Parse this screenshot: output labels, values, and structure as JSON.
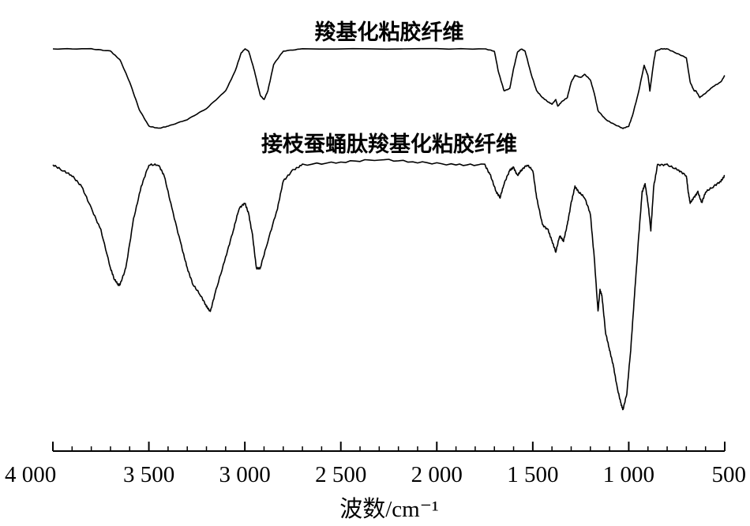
{
  "chart_data": {
    "type": "line",
    "title": "",
    "xlabel": "波数/cm⁻¹",
    "ylabel": "",
    "x_reversed": true,
    "xlim": [
      4000,
      500
    ],
    "x_ticks": [
      4000,
      3500,
      3000,
      2500,
      2000,
      1500,
      1000,
      500
    ],
    "x_tick_labels": [
      "4 000",
      "3 500",
      "3 000",
      "2 500",
      "2 000",
      "1 500",
      "1 000",
      "500"
    ],
    "y_axis_shown": false,
    "y_units": "transmittance, 100 = baseline (curves offset vertically)",
    "grid": false,
    "series": [
      {
        "name": "羧基化粘胶纤维",
        "points": [
          [
            4000,
            100
          ],
          [
            3800,
            100
          ],
          [
            3700,
            98
          ],
          [
            3650,
            90
          ],
          [
            3600,
            70
          ],
          [
            3550,
            45
          ],
          [
            3500,
            30
          ],
          [
            3450,
            28
          ],
          [
            3400,
            30
          ],
          [
            3300,
            36
          ],
          [
            3200,
            46
          ],
          [
            3100,
            62
          ],
          [
            3050,
            80
          ],
          [
            3020,
            96
          ],
          [
            3000,
            100
          ],
          [
            2980,
            98
          ],
          [
            2950,
            80
          ],
          [
            2920,
            58
          ],
          [
            2900,
            54
          ],
          [
            2880,
            62
          ],
          [
            2850,
            86
          ],
          [
            2800,
            98
          ],
          [
            2700,
            100
          ],
          [
            2000,
            100
          ],
          [
            1750,
            100
          ],
          [
            1700,
            98
          ],
          [
            1680,
            80
          ],
          [
            1650,
            62
          ],
          [
            1620,
            64
          ],
          [
            1600,
            82
          ],
          [
            1580,
            97
          ],
          [
            1560,
            100
          ],
          [
            1540,
            98
          ],
          [
            1510,
            78
          ],
          [
            1480,
            62
          ],
          [
            1450,
            56
          ],
          [
            1420,
            52
          ],
          [
            1400,
            50
          ],
          [
            1380,
            54
          ],
          [
            1370,
            48
          ],
          [
            1350,
            52
          ],
          [
            1320,
            56
          ],
          [
            1300,
            70
          ],
          [
            1280,
            76
          ],
          [
            1250,
            74
          ],
          [
            1230,
            77
          ],
          [
            1200,
            72
          ],
          [
            1180,
            60
          ],
          [
            1160,
            44
          ],
          [
            1120,
            36
          ],
          [
            1080,
            32
          ],
          [
            1030,
            28
          ],
          [
            1000,
            30
          ],
          [
            980,
            40
          ],
          [
            950,
            60
          ],
          [
            920,
            85
          ],
          [
            900,
            76
          ],
          [
            890,
            62
          ],
          [
            870,
            88
          ],
          [
            860,
            98
          ],
          [
            830,
            100
          ],
          [
            800,
            100
          ],
          [
            750,
            96
          ],
          [
            700,
            92
          ],
          [
            680,
            70
          ],
          [
            660,
            62
          ],
          [
            650,
            62
          ],
          [
            630,
            56
          ],
          [
            600,
            60
          ],
          [
            560,
            66
          ],
          [
            520,
            70
          ],
          [
            500,
            76
          ]
        ]
      },
      {
        "name": "接枝蚕蛹肽羧基化粘胶纤维",
        "points": [
          [
            4000,
            100
          ],
          [
            3950,
            98
          ],
          [
            3900,
            96
          ],
          [
            3850,
            92
          ],
          [
            3800,
            84
          ],
          [
            3750,
            76
          ],
          [
            3700,
            62
          ],
          [
            3680,
            58
          ],
          [
            3660,
            56
          ],
          [
            3650,
            56
          ],
          [
            3620,
            62
          ],
          [
            3580,
            80
          ],
          [
            3540,
            92
          ],
          [
            3500,
            100
          ],
          [
            3450,
            100
          ],
          [
            3420,
            96
          ],
          [
            3380,
            84
          ],
          [
            3330,
            70
          ],
          [
            3300,
            62
          ],
          [
            3270,
            56
          ],
          [
            3230,
            52
          ],
          [
            3200,
            48
          ],
          [
            3180,
            46
          ],
          [
            3150,
            54
          ],
          [
            3100,
            66
          ],
          [
            3060,
            76
          ],
          [
            3030,
            84
          ],
          [
            3000,
            86
          ],
          [
            2980,
            82
          ],
          [
            2960,
            74
          ],
          [
            2940,
            62
          ],
          [
            2920,
            62
          ],
          [
            2880,
            72
          ],
          [
            2830,
            84
          ],
          [
            2800,
            94
          ],
          [
            2750,
            98
          ],
          [
            2700,
            100
          ],
          [
            2500,
            101
          ],
          [
            2300,
            102
          ],
          [
            2100,
            101
          ],
          [
            1900,
            100
          ],
          [
            1750,
            100
          ],
          [
            1720,
            96
          ],
          [
            1690,
            90
          ],
          [
            1670,
            88
          ],
          [
            1650,
            93
          ],
          [
            1620,
            98
          ],
          [
            1600,
            99
          ],
          [
            1580,
            96
          ],
          [
            1560,
            98
          ],
          [
            1530,
            100
          ],
          [
            1500,
            98
          ],
          [
            1480,
            88
          ],
          [
            1450,
            78
          ],
          [
            1420,
            76
          ],
          [
            1400,
            72
          ],
          [
            1380,
            68
          ],
          [
            1360,
            74
          ],
          [
            1340,
            72
          ],
          [
            1320,
            78
          ],
          [
            1300,
            86
          ],
          [
            1280,
            92
          ],
          [
            1260,
            90
          ],
          [
            1230,
            88
          ],
          [
            1200,
            82
          ],
          [
            1180,
            66
          ],
          [
            1160,
            46
          ],
          [
            1150,
            54
          ],
          [
            1140,
            52
          ],
          [
            1120,
            38
          ],
          [
            1100,
            32
          ],
          [
            1080,
            26
          ],
          [
            1060,
            18
          ],
          [
            1040,
            12
          ],
          [
            1030,
            10
          ],
          [
            1010,
            16
          ],
          [
            990,
            32
          ],
          [
            970,
            52
          ],
          [
            950,
            72
          ],
          [
            930,
            90
          ],
          [
            915,
            93
          ],
          [
            900,
            86
          ],
          [
            885,
            76
          ],
          [
            870,
            92
          ],
          [
            850,
            100
          ],
          [
            800,
            100
          ],
          [
            740,
            98
          ],
          [
            700,
            96
          ],
          [
            690,
            90
          ],
          [
            680,
            86
          ],
          [
            660,
            88
          ],
          [
            640,
            90
          ],
          [
            620,
            86
          ],
          [
            600,
            90
          ],
          [
            560,
            92
          ],
          [
            520,
            94
          ],
          [
            500,
            96
          ]
        ]
      }
    ]
  }
}
